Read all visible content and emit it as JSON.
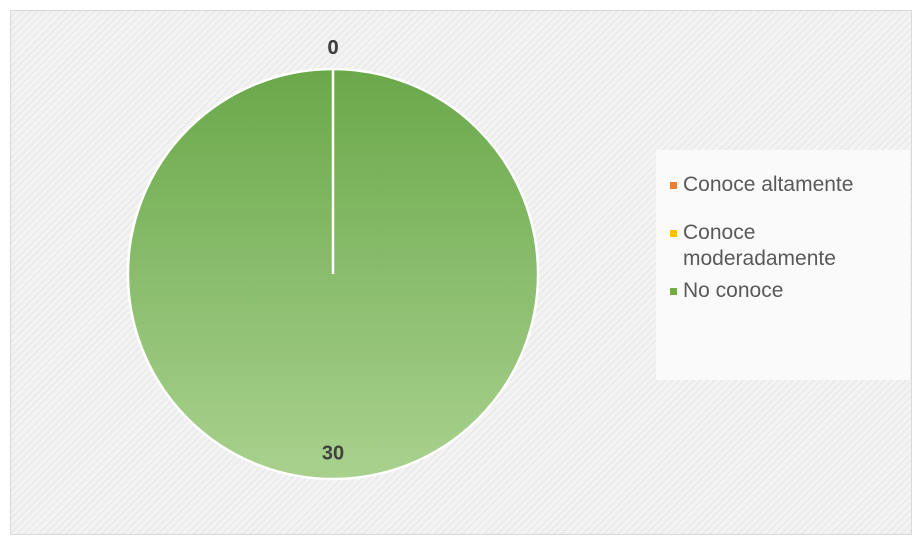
{
  "chart_data": {
    "type": "pie",
    "categories": [
      "Conoce altamente",
      "Conoce moderadamente",
      "No conoce"
    ],
    "values": [
      0,
      0,
      30
    ],
    "colors": [
      "#ed7d31",
      "#ffc000",
      "#70ad47"
    ],
    "legend": "right"
  }
}
